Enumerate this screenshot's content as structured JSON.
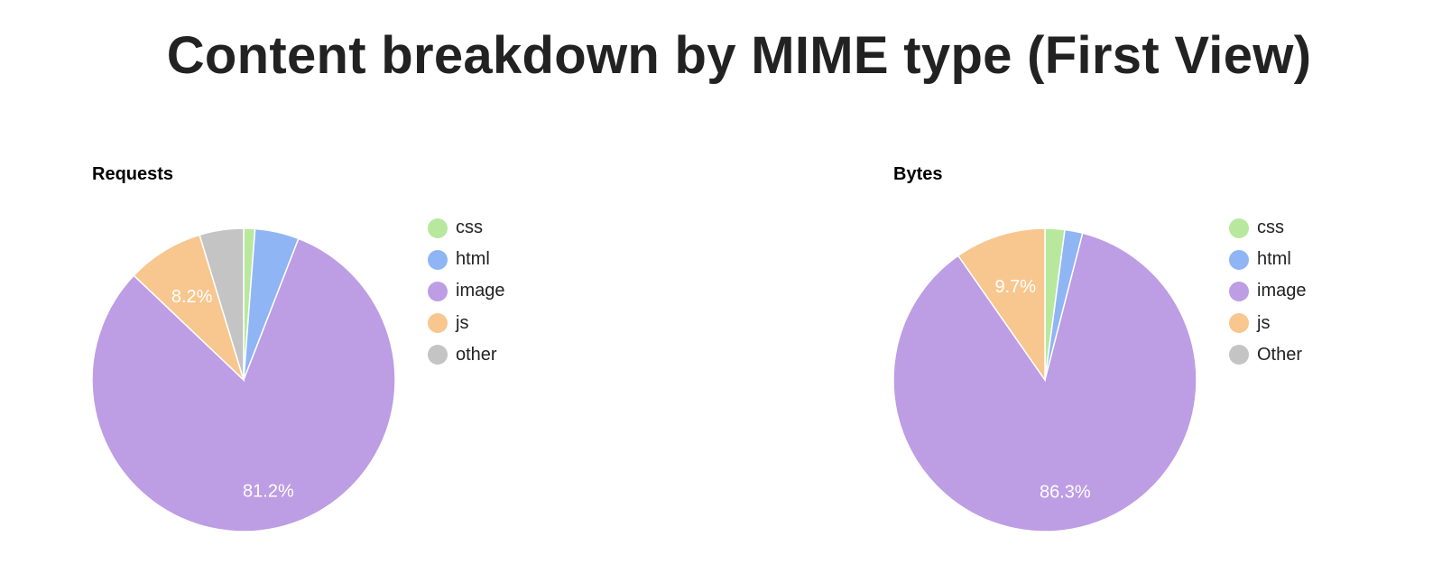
{
  "title": "Content breakdown by MIME type (First View)",
  "colors": {
    "css": "#b8e89e",
    "html": "#8fb5f5",
    "image": "#bd9de4",
    "js": "#f7c78f",
    "other": "#c4c4c4"
  },
  "chart_data": [
    {
      "type": "pie",
      "title": "Requests",
      "categories": [
        "css",
        "html",
        "image",
        "js",
        "other"
      ],
      "values": [
        1.2,
        4.7,
        81.2,
        8.2,
        4.7
      ],
      "slice_labels": [
        "",
        "",
        "81.2%",
        "8.2%",
        ""
      ],
      "legend": "right"
    },
    {
      "type": "pie",
      "title": "Bytes",
      "categories": [
        "css",
        "html",
        "image",
        "js",
        "Other"
      ],
      "values": [
        2.1,
        1.9,
        86.3,
        9.7,
        0.0
      ],
      "slice_labels": [
        "",
        "",
        "86.3%",
        "9.7%",
        ""
      ],
      "legend": "right"
    }
  ]
}
